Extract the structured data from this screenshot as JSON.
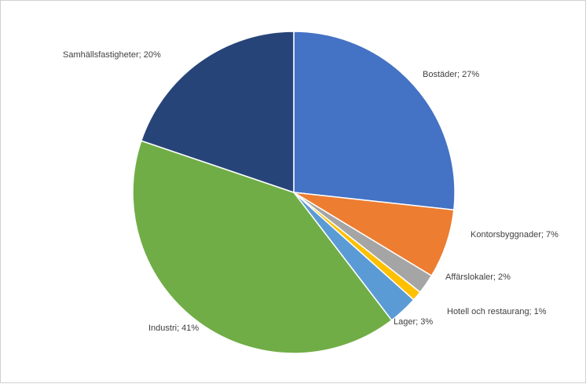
{
  "chart_data": {
    "type": "pie",
    "title": "",
    "slices": [
      {
        "category": "Bostäder",
        "value": 27,
        "label": "Bostäder; 27%",
        "color": "#4472C4"
      },
      {
        "category": "Kontorsbyggnader",
        "value": 7,
        "label": "Kontorsbyggnader; 7%",
        "color": "#ED7D31"
      },
      {
        "category": "Affärslokaler",
        "value": 2,
        "label": "Affärslokaler; 2%",
        "color": "#A5A5A5"
      },
      {
        "category": "Hotell och restaurang",
        "value": 1,
        "label": "Hotell och restaurang; 1%",
        "color": "#FFC000"
      },
      {
        "category": "Lager",
        "value": 3,
        "label": "Lager; 3%",
        "color": "#5B9BD5"
      },
      {
        "category": "Industri",
        "value": 41,
        "label": "Industri; 41%",
        "color": "#70AD47"
      },
      {
        "category": "Samhällsfastigheter",
        "value": 20,
        "label": "Samhällsfastigheter; 20%",
        "color": "#264478"
      }
    ]
  }
}
